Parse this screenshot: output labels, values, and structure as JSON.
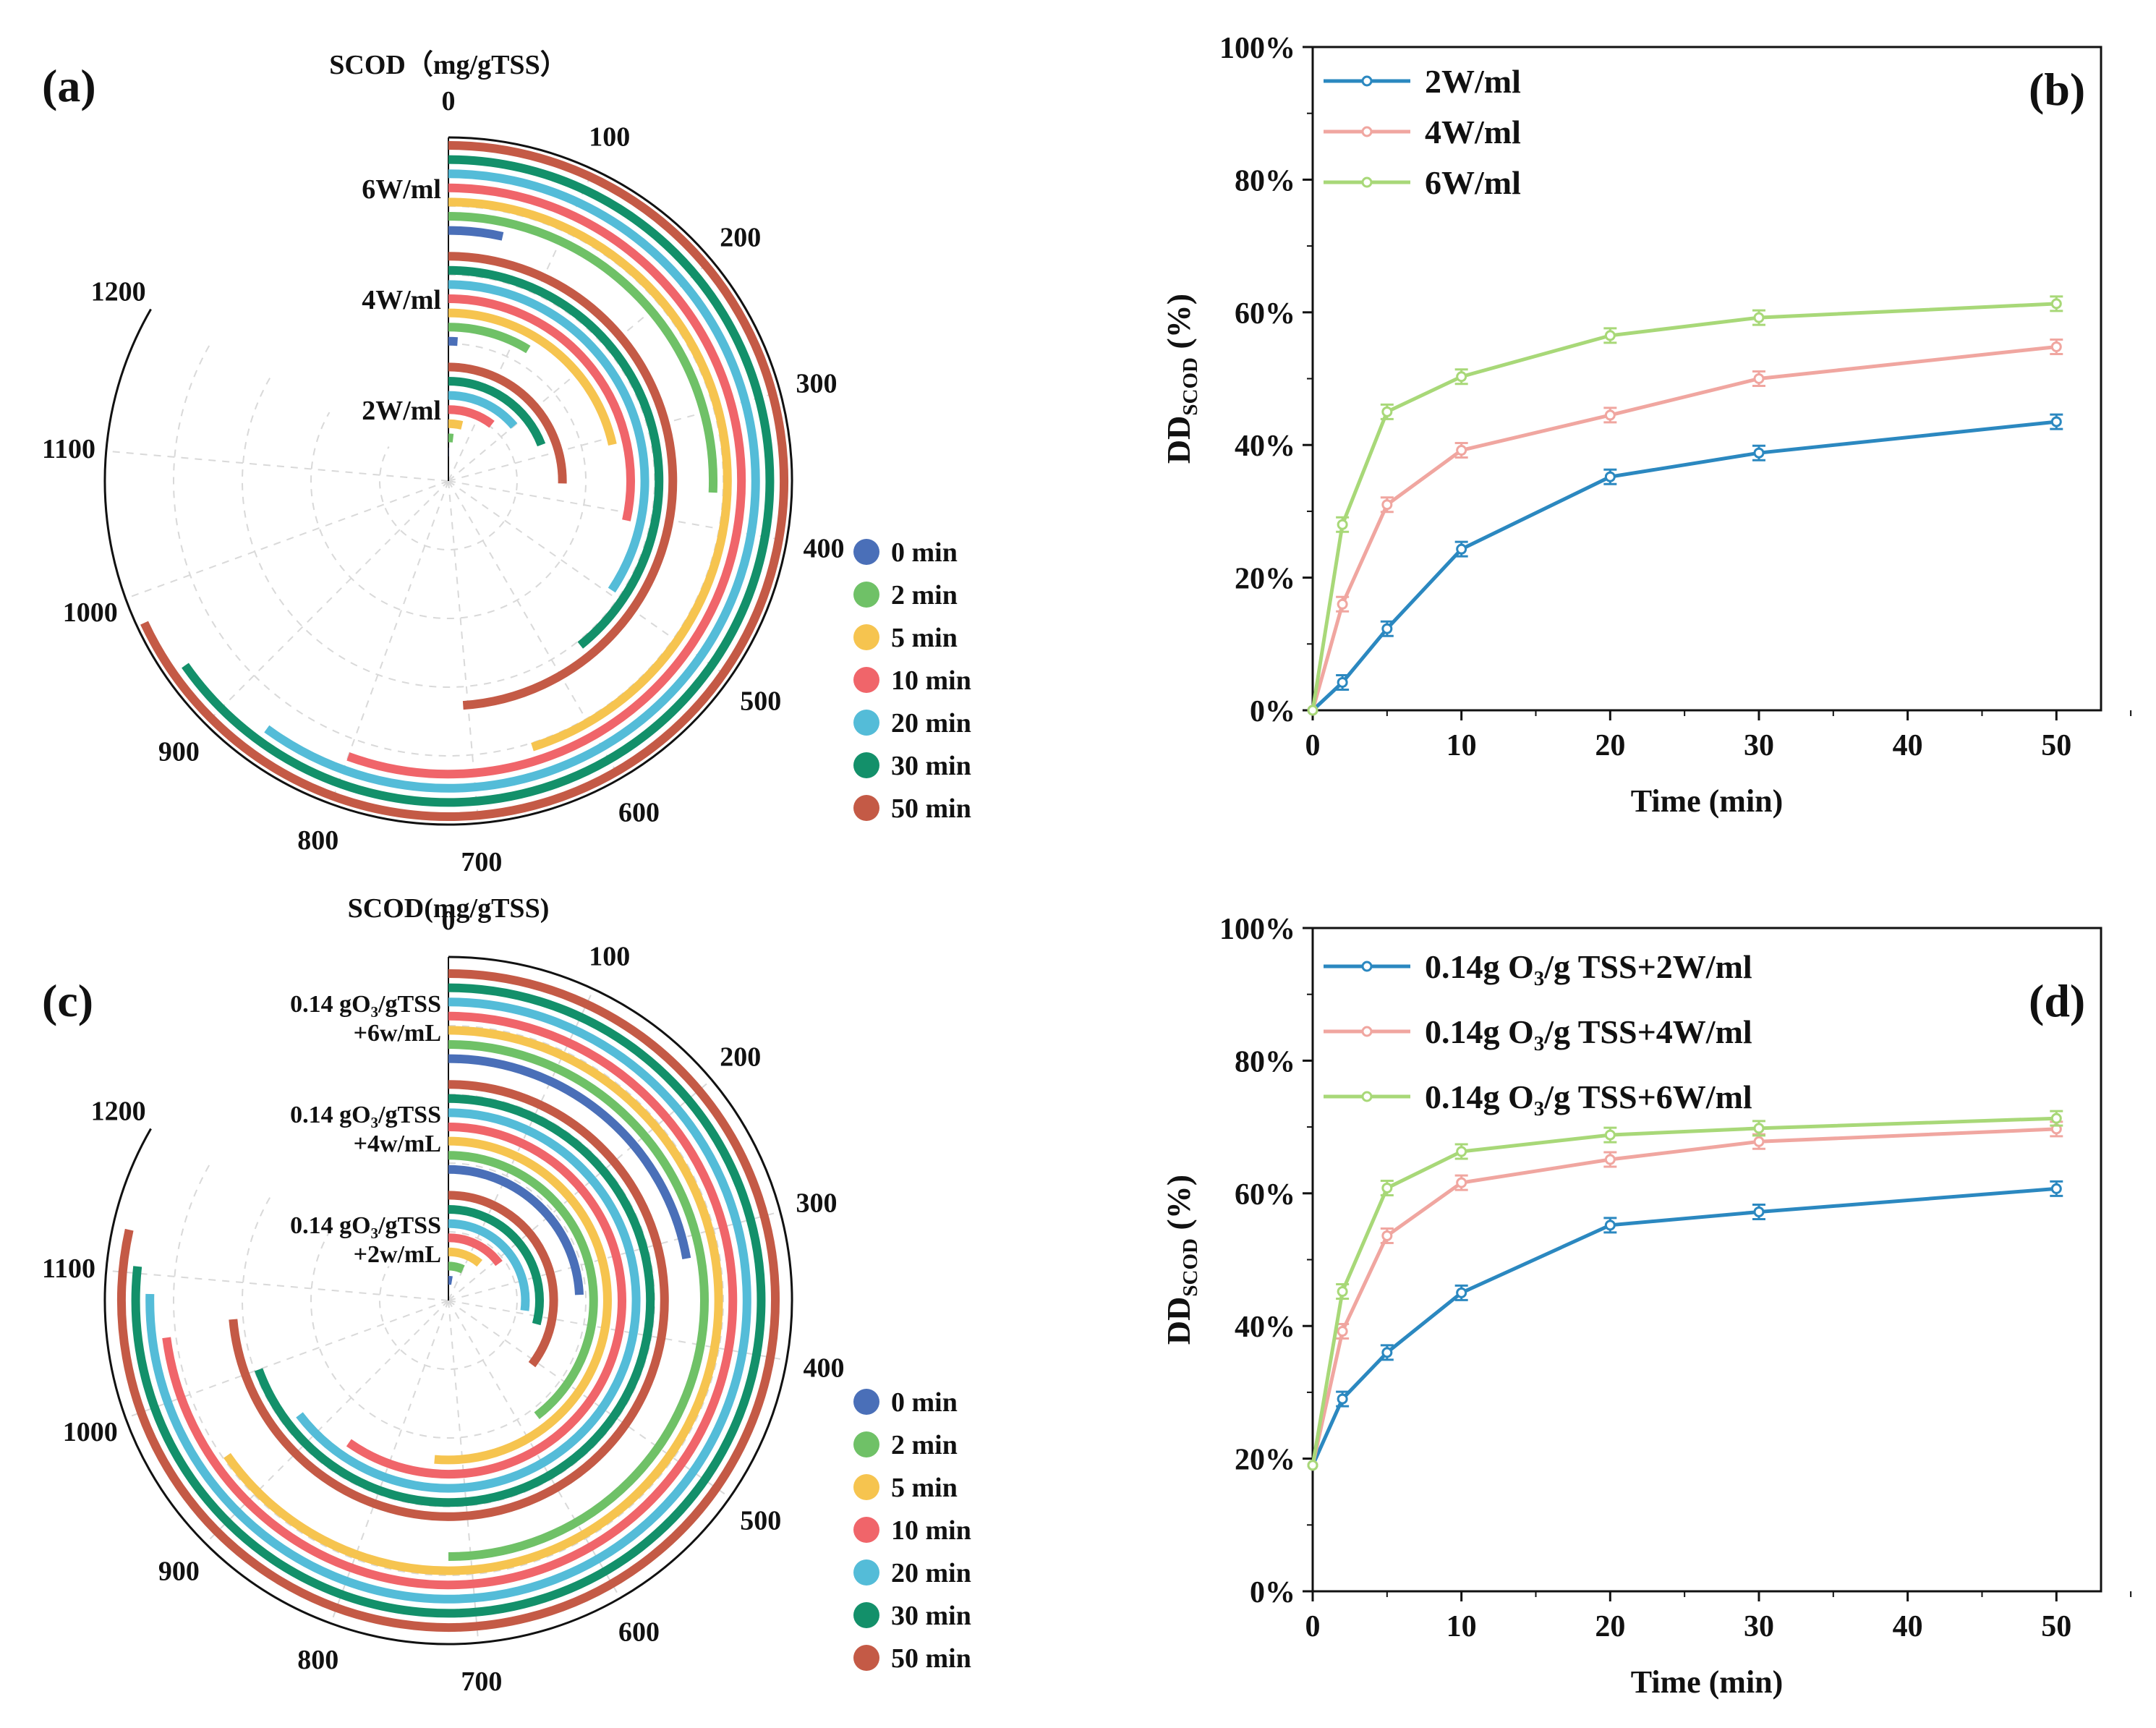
{
  "colors": {
    "t0": "#4a6fb8",
    "t2": "#6fc167",
    "t5": "#f6c44f",
    "t10": "#f0656a",
    "t20": "#54bcd8",
    "t30": "#13906a",
    "t50": "#c45a46",
    "line_a": "#2b88c0",
    "line_b": "#f0a6a0",
    "line_c": "#a8d878"
  },
  "chart_data": [
    {
      "id": "a",
      "type": "radial-bar",
      "panel_label": "(a)",
      "title": "SCOD（mg/gTSS）",
      "angular_range": [
        0,
        1200
      ],
      "angular_ticks": [
        "0",
        "100",
        "200",
        "300",
        "400",
        "500",
        "600",
        "700",
        "800",
        "900",
        "1000",
        "1100",
        "1200"
      ],
      "legend": [
        "0 min",
        "2 min",
        "5 min",
        "10 min",
        "20 min",
        "30 min",
        "50 min"
      ],
      "groups": [
        {
          "label": "2W/ml",
          "label_lines": [
            "2W/ml"
          ],
          "values": [
            2,
            25,
            55,
            150,
            200,
            275,
            365
          ]
        },
        {
          "label": "4W/ml",
          "label_lines": [
            "4W/ml"
          ],
          "values": [
            15,
            125,
            310,
            410,
            495,
            565,
            705
          ]
        },
        {
          "label": "6W/ml",
          "label_lines": [
            "6W/ml"
          ],
          "values": [
            50,
            370,
            650,
            800,
            865,
            940,
            980
          ]
        }
      ]
    },
    {
      "id": "b",
      "type": "line",
      "panel_label": "(b)",
      "xlabel": "Time (min)",
      "ylabel_main": "DD",
      "ylabel_sub": "SCOD",
      "ylabel_tail": " (%)",
      "x_ticks": [
        "0",
        "10",
        "20",
        "30",
        "40",
        "50"
      ],
      "y_ticks": [
        "0%",
        "20%",
        "40%",
        "60%",
        "80%",
        "100%"
      ],
      "xlim": [
        0,
        53
      ],
      "ylim": [
        0,
        100
      ],
      "x": [
        0,
        2,
        5,
        10,
        20,
        30,
        50
      ],
      "series": [
        {
          "name": "2W/ml",
          "name_main": "2W/ml",
          "name_sub": "",
          "name_tail": "",
          "values": [
            0,
            4.2,
            12.3,
            24.3,
            35.2,
            38.8,
            43.5
          ]
        },
        {
          "name": "4W/ml",
          "name_main": "4W/ml",
          "name_sub": "",
          "name_tail": "",
          "values": [
            0,
            16,
            31,
            39.2,
            44.5,
            50,
            54.8
          ]
        },
        {
          "name": "6W/ml",
          "name_main": "6W/ml",
          "name_sub": "",
          "name_tail": "",
          "values": [
            0,
            28,
            45,
            50.3,
            56.5,
            59.2,
            61.3
          ]
        }
      ]
    },
    {
      "id": "c",
      "type": "radial-bar",
      "panel_label": "(c)",
      "title": "SCOD(mg/gTSS)",
      "angular_range": [
        0,
        1200
      ],
      "angular_ticks": [
        "0",
        "100",
        "200",
        "300",
        "400",
        "500",
        "600",
        "700",
        "800",
        "900",
        "1000",
        "1100",
        "1200"
      ],
      "legend": [
        "0 min",
        "2 min",
        "5 min",
        "10 min",
        "20 min",
        "30 min",
        "50 min"
      ],
      "groups": [
        {
          "label": "0.14 gO3/gTSS +2w/mL",
          "label_lines": [
            "0.14 gO3/gTSS",
            "+2w/mL"
          ],
          "values": [
            40,
            100,
            160,
            215,
            390,
            420,
            510
          ]
        },
        {
          "label": "0.14 gO3/gTSS +4w/mL",
          "label_lines": [
            "0.14 gO3/gTSS",
            "+4w/mL"
          ],
          "values": [
            350,
            570,
            740,
            860,
            930,
            1000,
            1060
          ]
        },
        {
          "label": "0.14 gO3/gTSS +6w/mL",
          "label_lines": [
            "0.14 gO3/gTSS",
            "+6w/mL"
          ],
          "values": [
            320,
            720,
            940,
            1050,
            1085,
            1105,
            1130
          ]
        }
      ]
    },
    {
      "id": "d",
      "type": "line",
      "panel_label": "(d)",
      "xlabel": "Time (min)",
      "ylabel_main": "DD",
      "ylabel_sub": "SCOD",
      "ylabel_tail": " (%)",
      "x_ticks": [
        "0",
        "10",
        "20",
        "30",
        "40",
        "50"
      ],
      "y_ticks": [
        "0%",
        "20%",
        "40%",
        "60%",
        "80%",
        "100%"
      ],
      "xlim": [
        0,
        53
      ],
      "ylim": [
        0,
        100
      ],
      "x": [
        0,
        2,
        5,
        10,
        20,
        30,
        50
      ],
      "series": [
        {
          "name": "0.14g O3/g TSS+2W/ml",
          "name_main": "0.14g O",
          "name_sub": "3",
          "name_tail": "/g TSS+2W/ml",
          "values": [
            19,
            29,
            36,
            45,
            55.2,
            57.2,
            60.7
          ]
        },
        {
          "name": "0.14g O3/g TSS+4W/ml",
          "name_main": "0.14g O",
          "name_sub": "3",
          "name_tail": "/g TSS+4W/ml",
          "values": [
            19,
            39.2,
            53.6,
            61.6,
            65.1,
            67.8,
            69.7
          ]
        },
        {
          "name": "0.14g O3/g TSS+6W/ml",
          "name_main": "0.14g O",
          "name_sub": "3",
          "name_tail": "/g TSS+6W/ml",
          "values": [
            19,
            45.2,
            60.8,
            66.3,
            68.8,
            69.8,
            71.3
          ]
        }
      ]
    }
  ]
}
